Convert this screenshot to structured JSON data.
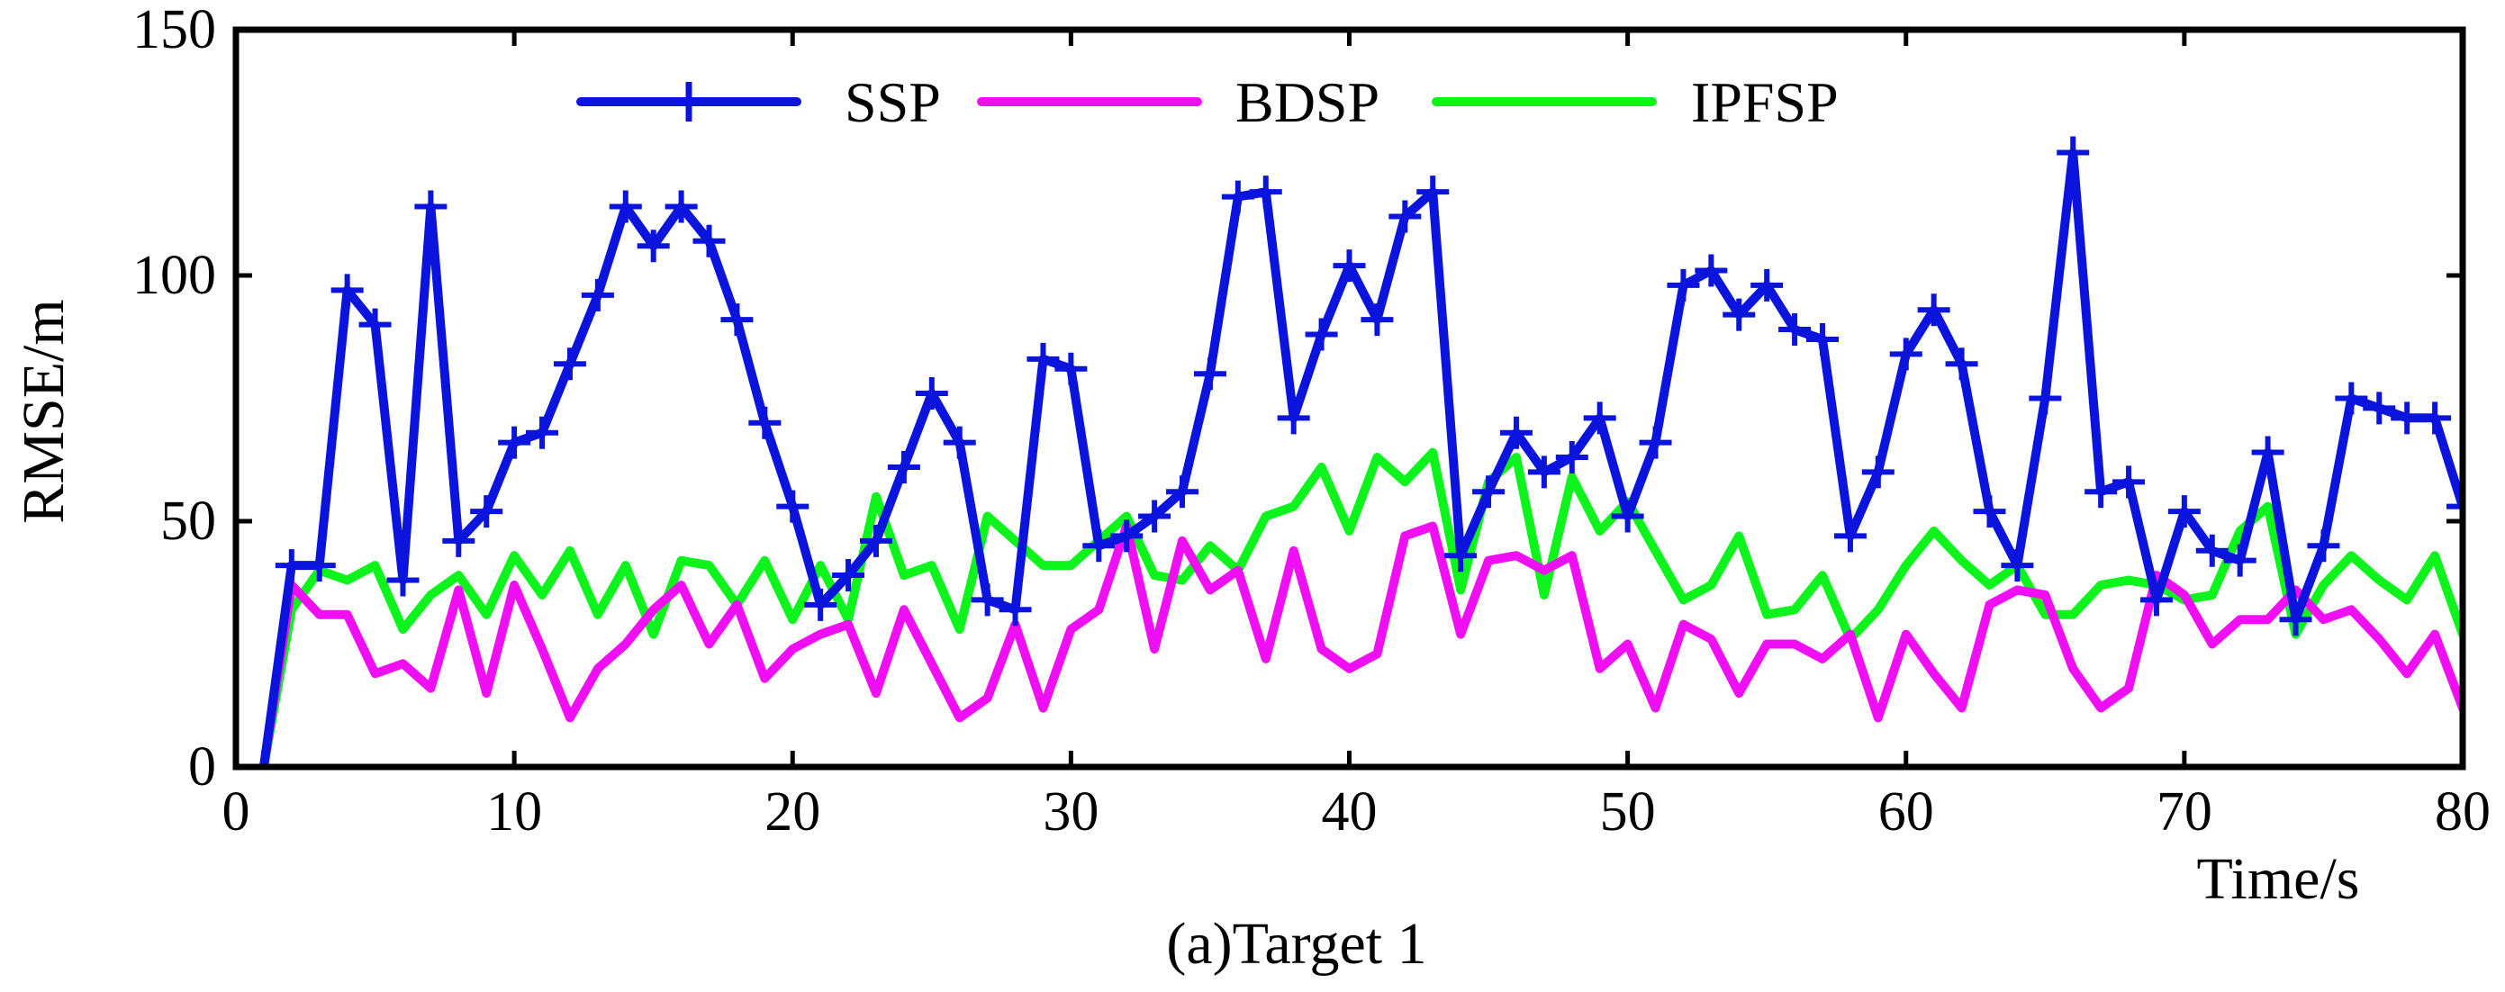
{
  "chart_data": {
    "type": "line",
    "title": "",
    "caption": "(a)Target 1",
    "xlabel": "Time/s",
    "ylabel": "RMSE/m",
    "xlim": [
      0,
      80
    ],
    "ylim": [
      0,
      150
    ],
    "xticks": [
      0,
      10,
      20,
      30,
      40,
      50,
      60,
      70,
      80
    ],
    "yticks": [
      0,
      50,
      100,
      150
    ],
    "grid": false,
    "legend_position": "top",
    "series": [
      {
        "name": "SSP",
        "color": "#0a14dc",
        "marker": "plus",
        "x": [
          1,
          2,
          3,
          4,
          5,
          6,
          7,
          8,
          9,
          10,
          11,
          12,
          13,
          14,
          15,
          16,
          17,
          18,
          19,
          20,
          21,
          22,
          23,
          24,
          25,
          26,
          27,
          28,
          29,
          30,
          31,
          32,
          33,
          34,
          35,
          36,
          37,
          38,
          39,
          40,
          41,
          42,
          43,
          44,
          45,
          46,
          47,
          48,
          49,
          50,
          51,
          52,
          53,
          54,
          55,
          56,
          57,
          58,
          59,
          60,
          61,
          62,
          63,
          64,
          65,
          66,
          67,
          68,
          69,
          70,
          71,
          72,
          73,
          74,
          75,
          76,
          77,
          78,
          79,
          80
        ],
        "values": [
          0,
          41,
          41,
          97,
          90,
          38,
          114,
          46,
          52,
          66,
          68,
          82,
          96,
          114,
          106,
          114,
          107,
          91,
          70,
          53,
          33,
          39,
          46,
          61,
          76,
          66,
          34,
          32,
          83,
          81,
          45,
          47,
          51,
          56,
          80,
          116,
          117,
          71,
          88,
          102,
          91,
          112,
          117,
          43,
          56,
          68,
          60,
          63,
          71,
          51,
          66,
          98,
          101,
          92,
          98,
          89,
          87,
          47,
          60,
          84,
          93,
          82,
          52,
          41,
          75,
          125,
          56,
          58,
          34,
          52,
          44,
          42,
          64,
          30,
          45,
          75,
          73,
          71,
          71,
          53
        ]
      },
      {
        "name": "BDSP",
        "color": "#f00ff5",
        "marker": "none",
        "x": [
          1,
          2,
          3,
          4,
          5,
          6,
          7,
          8,
          9,
          10,
          11,
          12,
          13,
          14,
          15,
          16,
          17,
          18,
          19,
          20,
          21,
          22,
          23,
          24,
          25,
          26,
          27,
          28,
          29,
          30,
          31,
          32,
          33,
          34,
          35,
          36,
          37,
          38,
          39,
          40,
          41,
          42,
          43,
          44,
          45,
          46,
          47,
          48,
          49,
          50,
          51,
          52,
          53,
          54,
          55,
          56,
          57,
          58,
          59,
          60,
          61,
          62,
          63,
          64,
          65,
          66,
          67,
          68,
          69,
          70,
          71,
          72,
          73,
          74,
          75,
          76,
          77,
          78,
          79,
          80
        ],
        "values": [
          0,
          37,
          31,
          31,
          19,
          21,
          16,
          36,
          15,
          37,
          24,
          10,
          20,
          25,
          32,
          37,
          25,
          33,
          18,
          24,
          27,
          29,
          15,
          32,
          21,
          10,
          14,
          29,
          12,
          28,
          32,
          49,
          24,
          46,
          36,
          40,
          22,
          44,
          24,
          20,
          23,
          47,
          49,
          27,
          42,
          43,
          40,
          43,
          20,
          25,
          12,
          29,
          26,
          15,
          25,
          25,
          22,
          27,
          10,
          27,
          19,
          12,
          33,
          36,
          35,
          20,
          12,
          16,
          39,
          35,
          25,
          30,
          30,
          36,
          30,
          32,
          26,
          19,
          27,
          12
        ]
      },
      {
        "name": "IPFSP",
        "color": "#0cf41c",
        "marker": "none",
        "x": [
          1,
          2,
          3,
          4,
          5,
          6,
          7,
          8,
          9,
          10,
          11,
          12,
          13,
          14,
          15,
          16,
          17,
          18,
          19,
          20,
          21,
          22,
          23,
          24,
          25,
          26,
          27,
          28,
          29,
          30,
          31,
          32,
          33,
          34,
          35,
          36,
          37,
          38,
          39,
          40,
          41,
          42,
          43,
          44,
          45,
          46,
          47,
          48,
          49,
          50,
          51,
          52,
          53,
          54,
          55,
          56,
          57,
          58,
          59,
          60,
          61,
          62,
          63,
          64,
          65,
          66,
          67,
          68,
          69,
          70,
          71,
          72,
          73,
          74,
          75,
          76,
          77,
          78,
          79,
          80
        ],
        "values": [
          0,
          32,
          40,
          38,
          41,
          28,
          35,
          39,
          31,
          43,
          35,
          44,
          31,
          41,
          27,
          42,
          41,
          33,
          42,
          30,
          41,
          30,
          55,
          39,
          41,
          28,
          51,
          46,
          41,
          41,
          46,
          51,
          39,
          38,
          45,
          40,
          51,
          53,
          61,
          48,
          63,
          58,
          64,
          36,
          58,
          63,
          35,
          59,
          48,
          54,
          44,
          34,
          37,
          47,
          31,
          32,
          39,
          26,
          32,
          41,
          48,
          42,
          37,
          41,
          31,
          31,
          37,
          38,
          37,
          34,
          35,
          48,
          53,
          27,
          37,
          43,
          38,
          34,
          43,
          27
        ]
      }
    ]
  }
}
